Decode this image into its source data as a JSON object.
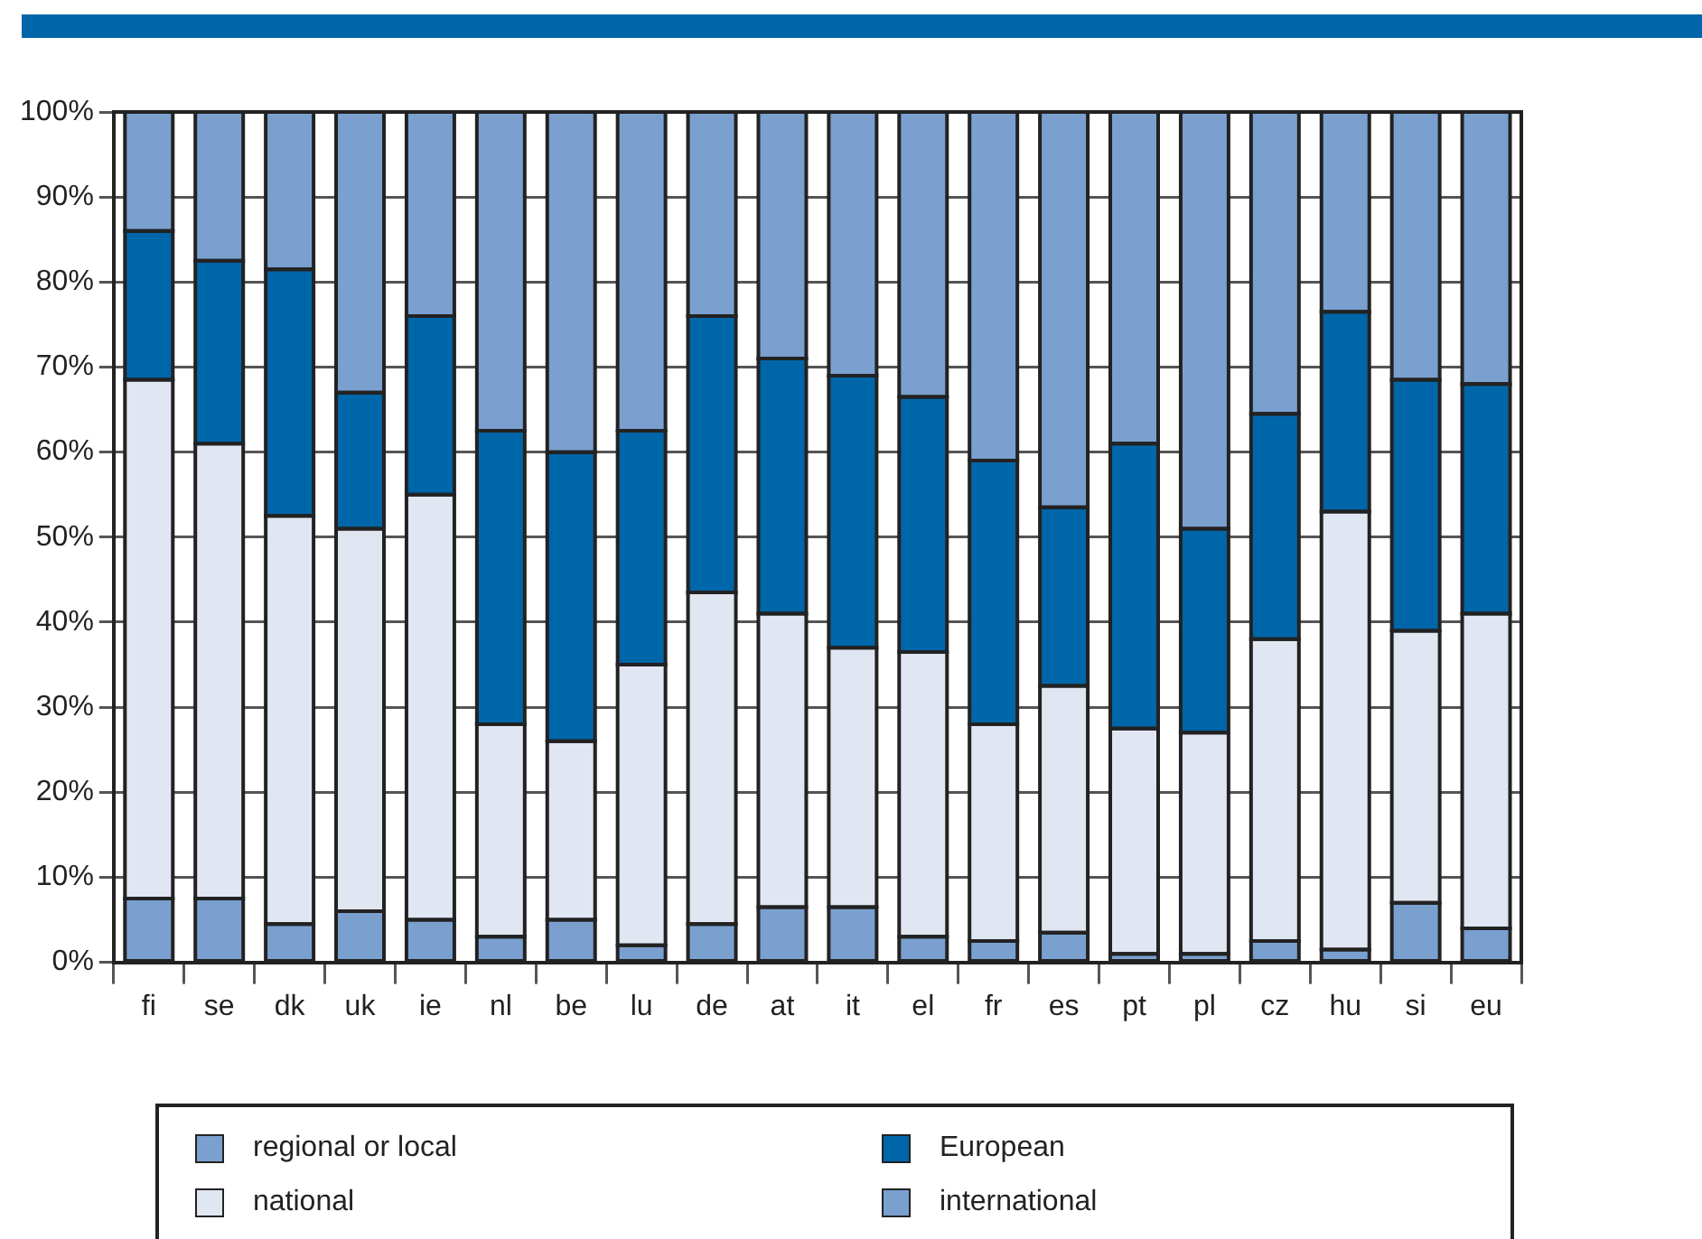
{
  "chart_data": {
    "type": "bar",
    "stacked": true,
    "categories": [
      "fi",
      "se",
      "dk",
      "uk",
      "ie",
      "nl",
      "be",
      "lu",
      "de",
      "at",
      "it",
      "el",
      "fr",
      "es",
      "pt",
      "pl",
      "cz",
      "hu",
      "si",
      "eu"
    ],
    "series": [
      {
        "name": "regional or local",
        "color": "#7aa0cf",
        "values": [
          7.5,
          7.5,
          4.5,
          6,
          5,
          3,
          5,
          2,
          4.5,
          6.5,
          6.5,
          3,
          2.5,
          3.5,
          1,
          1,
          2.5,
          1.5,
          7,
          4
        ]
      },
      {
        "name": "national",
        "color": "#e0e6f2",
        "values": [
          61,
          53.5,
          48,
          45,
          50,
          25,
          21,
          33,
          39,
          34.5,
          30.5,
          33.5,
          25.5,
          29,
          26.5,
          26,
          35.5,
          51.5,
          32,
          37
        ]
      },
      {
        "name": "European",
        "color": "#0066aa",
        "values": [
          17.5,
          21.5,
          29,
          16,
          21,
          34.5,
          34,
          27.5,
          32.5,
          30,
          32,
          30,
          31,
          21,
          33.5,
          24,
          26.5,
          23.5,
          29.5,
          27
        ]
      },
      {
        "name": "international",
        "color": "#7aa0cf",
        "values": [
          14,
          17.5,
          18.5,
          33,
          24,
          37.5,
          40,
          37.5,
          24,
          29,
          31,
          33.5,
          41,
          46.5,
          39,
          49,
          35.5,
          23.5,
          31.5,
          32
        ]
      }
    ],
    "ylim": [
      0,
      100
    ],
    "yticks": [
      {
        "value": 0,
        "label": "0%"
      },
      {
        "value": 10,
        "label": "10%"
      },
      {
        "value": 20,
        "label": "20%"
      },
      {
        "value": 30,
        "label": "30%"
      },
      {
        "value": 40,
        "label": "40%"
      },
      {
        "value": 50,
        "label": "50%"
      },
      {
        "value": 60,
        "label": "60%"
      },
      {
        "value": 70,
        "label": "70%"
      },
      {
        "value": 80,
        "label": "80%"
      },
      {
        "value": 90,
        "label": "90%"
      },
      {
        "value": 100,
        "label": "100%"
      }
    ],
    "grid": "y",
    "legend": "bottom"
  }
}
